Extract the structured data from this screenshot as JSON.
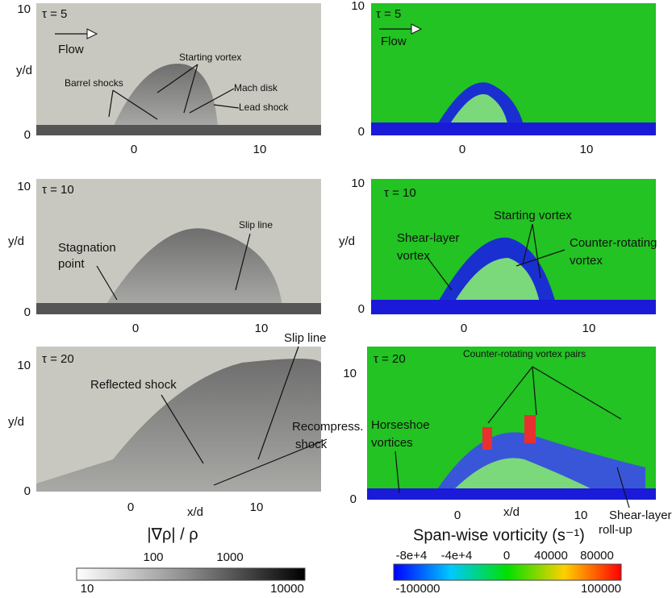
{
  "left_panels": [
    {
      "tau": "τ = 5",
      "y_label": "y/d",
      "flow": "Flow",
      "x_ticks": [
        "0",
        "10"
      ],
      "y_ticks": [
        "10",
        "0"
      ],
      "annotations": [
        "Starting vortex",
        "Barrel shocks",
        "Mach disk",
        "Lead shock"
      ]
    },
    {
      "tau": "τ = 10",
      "y_label": "y/d",
      "x_ticks": [
        "0",
        "10"
      ],
      "y_ticks": [
        "10",
        "0"
      ],
      "annotations": [
        "Slip line",
        "Stagnation",
        "point"
      ]
    },
    {
      "tau": "τ = 20",
      "y_label": "y/d",
      "x_label": "x/d",
      "x_ticks": [
        "0",
        "10"
      ],
      "y_ticks": [
        "10",
        "0"
      ],
      "annotations": [
        "Reflected shock",
        "Slip line",
        "Recompress.",
        "shock"
      ]
    }
  ],
  "right_panels": [
    {
      "tau": "τ = 5",
      "flow": "Flow",
      "x_ticks": [
        "0",
        "10"
      ],
      "y_ticks": [
        "10",
        "0"
      ]
    },
    {
      "tau": "τ = 10",
      "y_label": "y/d",
      "x_ticks": [
        "0",
        "10"
      ],
      "y_ticks": [
        "10",
        "0"
      ],
      "annotations": [
        "Starting vortex",
        "Shear-layer",
        "vortex",
        "Counter-rotating",
        "vortex"
      ]
    },
    {
      "tau": "τ = 20",
      "x_label": "x/d",
      "x_ticks": [
        "0",
        "10"
      ],
      "y_ticks": [
        "10",
        "0"
      ],
      "annotations": [
        "Counter-rotating vortex pairs",
        "Horseshoe",
        "vortices",
        "Shear-layer",
        "roll-up"
      ]
    }
  ],
  "left_colorbar": {
    "title": "|∇ρ| / ρ",
    "top_labels": [
      "100",
      "1000"
    ],
    "bottom_labels": [
      "10",
      "10000"
    ]
  },
  "right_colorbar": {
    "title": "Span-wise vorticity (s⁻¹)",
    "top_labels": [
      "-8e+4",
      "-4e+4",
      "0",
      "40000",
      "80000"
    ],
    "bottom_labels": [
      "-100000",
      "100000"
    ]
  }
}
